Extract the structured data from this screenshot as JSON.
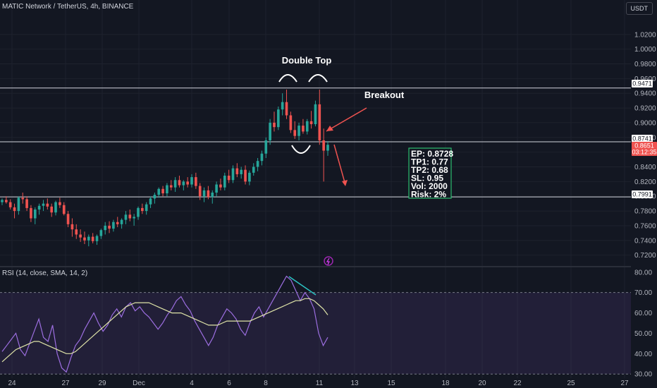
{
  "header": {
    "symbol": "MATIC Network / TetherUS, 4h, BINANCE",
    "currency": "USDT"
  },
  "rsi_label": "RSI (14, close, SMA, 14, 2)",
  "annotations": {
    "double_top": "Double Top",
    "breakout": "Breakout"
  },
  "trade_box": [
    "EP: 0.8728",
    "TP1: 0.77",
    "TP2: 0.68",
    "SL: 0.95",
    "Vol: 2000",
    "Risk: 2%"
  ],
  "price_tags": {
    "upper": "0.9471",
    "neckline": "0.8741",
    "current": "0.8651",
    "countdown": "03:12:35",
    "lower": "0.7991"
  },
  "colors": {
    "background": "#131722",
    "up": "#26a69a",
    "down": "#ef5350",
    "rsi": "#9c6ee0",
    "rsi_ma": "#dfe4a8",
    "box_border": "#2bbd6e",
    "arrow": "#ef5350",
    "divergence": "#2bc2c2"
  },
  "chart_data": [
    {
      "type": "candlestick",
      "x_ticks": [
        "24",
        "27",
        "29",
        "Dec",
        "4",
        "6",
        "8",
        "11",
        "13",
        "15",
        "18",
        "20",
        "22",
        "25",
        "27"
      ],
      "y_ticks": [
        "1.0200",
        "1.0000",
        "0.9800",
        "0.9600",
        "0.9400",
        "0.9200",
        "0.9000",
        "0.8800",
        "0.8600",
        "0.8400",
        "0.8200",
        "0.8000",
        "0.7800",
        "0.7600",
        "0.7400",
        "0.7200"
      ],
      "ylim": [
        0.712,
        1.038
      ],
      "horizontal_levels": [
        0.9471,
        0.8741,
        0.7991
      ],
      "candles": [
        [
          0.792,
          0.797,
          0.788,
          0.795
        ],
        [
          0.795,
          0.8,
          0.79,
          0.792
        ],
        [
          0.792,
          0.796,
          0.782,
          0.785
        ],
        [
          0.785,
          0.79,
          0.77,
          0.78
        ],
        [
          0.78,
          0.8,
          0.775,
          0.798
        ],
        [
          0.798,
          0.805,
          0.79,
          0.796
        ],
        [
          0.796,
          0.8,
          0.78,
          0.784
        ],
        [
          0.784,
          0.788,
          0.765,
          0.77
        ],
        [
          0.77,
          0.785,
          0.762,
          0.782
        ],
        [
          0.782,
          0.79,
          0.775,
          0.787
        ],
        [
          0.787,
          0.795,
          0.78,
          0.79
        ],
        [
          0.79,
          0.797,
          0.782,
          0.786
        ],
        [
          0.786,
          0.79,
          0.772,
          0.778
        ],
        [
          0.778,
          0.794,
          0.774,
          0.792
        ],
        [
          0.792,
          0.798,
          0.784,
          0.788
        ],
        [
          0.788,
          0.792,
          0.774,
          0.776
        ],
        [
          0.776,
          0.78,
          0.758,
          0.762
        ],
        [
          0.762,
          0.77,
          0.745,
          0.755
        ],
        [
          0.755,
          0.762,
          0.742,
          0.748
        ],
        [
          0.748,
          0.755,
          0.738,
          0.744
        ],
        [
          0.744,
          0.752,
          0.735,
          0.74
        ],
        [
          0.74,
          0.748,
          0.732,
          0.745
        ],
        [
          0.745,
          0.75,
          0.736,
          0.739
        ],
        [
          0.739,
          0.748,
          0.734,
          0.746
        ],
        [
          0.746,
          0.756,
          0.742,
          0.754
        ],
        [
          0.754,
          0.765,
          0.748,
          0.76
        ],
        [
          0.76,
          0.766,
          0.75,
          0.756
        ],
        [
          0.756,
          0.768,
          0.752,
          0.765
        ],
        [
          0.765,
          0.772,
          0.758,
          0.762
        ],
        [
          0.762,
          0.77,
          0.756,
          0.768
        ],
        [
          0.768,
          0.78,
          0.762,
          0.775
        ],
        [
          0.775,
          0.782,
          0.766,
          0.77
        ],
        [
          0.77,
          0.776,
          0.76,
          0.772
        ],
        [
          0.772,
          0.786,
          0.768,
          0.784
        ],
        [
          0.784,
          0.79,
          0.776,
          0.78
        ],
        [
          0.78,
          0.792,
          0.775,
          0.789
        ],
        [
          0.789,
          0.8,
          0.784,
          0.797
        ],
        [
          0.797,
          0.805,
          0.79,
          0.802
        ],
        [
          0.802,
          0.812,
          0.798,
          0.81
        ],
        [
          0.81,
          0.814,
          0.8,
          0.804
        ],
        [
          0.804,
          0.818,
          0.8,
          0.815
        ],
        [
          0.815,
          0.822,
          0.808,
          0.812
        ],
        [
          0.812,
          0.826,
          0.806,
          0.822
        ],
        [
          0.822,
          0.828,
          0.812,
          0.815
        ],
        [
          0.815,
          0.822,
          0.808,
          0.82
        ],
        [
          0.82,
          0.826,
          0.812,
          0.816
        ],
        [
          0.816,
          0.83,
          0.812,
          0.826
        ],
        [
          0.826,
          0.832,
          0.81,
          0.814
        ],
        [
          0.814,
          0.818,
          0.795,
          0.8
        ],
        [
          0.8,
          0.812,
          0.792,
          0.808
        ],
        [
          0.808,
          0.814,
          0.796,
          0.799
        ],
        [
          0.799,
          0.808,
          0.79,
          0.805
        ],
        [
          0.805,
          0.82,
          0.8,
          0.816
        ],
        [
          0.816,
          0.824,
          0.808,
          0.812
        ],
        [
          0.812,
          0.832,
          0.808,
          0.828
        ],
        [
          0.828,
          0.836,
          0.818,
          0.822
        ],
        [
          0.822,
          0.842,
          0.818,
          0.838
        ],
        [
          0.838,
          0.845,
          0.826,
          0.83
        ],
        [
          0.83,
          0.84,
          0.824,
          0.836
        ],
        [
          0.836,
          0.842,
          0.816,
          0.82
        ],
        [
          0.82,
          0.835,
          0.815,
          0.832
        ],
        [
          0.832,
          0.845,
          0.828,
          0.84
        ],
        [
          0.84,
          0.852,
          0.834,
          0.848
        ],
        [
          0.848,
          0.862,
          0.842,
          0.858
        ],
        [
          0.858,
          0.88,
          0.852,
          0.876
        ],
        [
          0.876,
          0.905,
          0.87,
          0.9
        ],
        [
          0.9,
          0.915,
          0.888,
          0.894
        ],
        [
          0.894,
          0.922,
          0.89,
          0.918
        ],
        [
          0.918,
          0.94,
          0.91,
          0.928
        ],
        [
          0.928,
          0.945,
          0.905,
          0.91
        ],
        [
          0.91,
          0.915,
          0.886,
          0.89
        ],
        [
          0.89,
          0.902,
          0.878,
          0.882
        ],
        [
          0.882,
          0.9,
          0.876,
          0.896
        ],
        [
          0.896,
          0.905,
          0.885,
          0.888
        ],
        [
          0.888,
          0.905,
          0.884,
          0.902
        ],
        [
          0.902,
          0.916,
          0.892,
          0.898
        ],
        [
          0.898,
          0.93,
          0.895,
          0.925
        ],
        [
          0.925,
          0.945,
          0.87,
          0.876
        ],
        [
          0.876,
          0.892,
          0.82,
          0.862
        ],
        [
          0.862,
          0.875,
          0.855,
          0.87
        ]
      ]
    },
    {
      "type": "line",
      "title": "RSI (14, close, SMA, 14, 2)",
      "y_ticks": [
        "80.00",
        "70.00",
        "60.00",
        "50.00",
        "40.00",
        "30.00"
      ],
      "ylim": [
        28,
        82
      ],
      "band": [
        30,
        70
      ],
      "series": [
        {
          "name": "RSI",
          "values": [
            41,
            44,
            47,
            50,
            42,
            39,
            45,
            51,
            57,
            48,
            46,
            54,
            40,
            33,
            31,
            38,
            44,
            47,
            52,
            56,
            60,
            55,
            51,
            54,
            59,
            62,
            58,
            63,
            65,
            61,
            63,
            60,
            58,
            55,
            52,
            55,
            59,
            62,
            66,
            68,
            64,
            61,
            56,
            52,
            48,
            44,
            48,
            54,
            58,
            62,
            60,
            57,
            52,
            49,
            55,
            60,
            63,
            58,
            62,
            66,
            70,
            74,
            78,
            76,
            71,
            66,
            70,
            67,
            62,
            50,
            44,
            48
          ]
        },
        {
          "name": "RSI-based MA",
          "values": [
            36,
            38,
            40,
            42,
            43,
            44,
            45,
            46,
            46,
            45,
            44,
            43,
            42,
            41,
            40,
            40,
            41,
            43,
            45,
            47,
            49,
            51,
            53,
            55,
            57,
            59,
            61,
            63,
            64,
            65,
            65,
            65,
            65,
            64,
            63,
            62,
            61,
            60,
            60,
            60,
            59,
            58,
            57,
            56,
            55,
            54,
            54,
            54,
            55,
            56,
            56,
            56,
            56,
            56,
            56,
            57,
            58,
            59,
            60,
            61,
            62,
            63,
            64,
            65,
            66,
            66,
            67,
            67,
            66,
            64,
            62,
            59
          ]
        }
      ]
    }
  ]
}
